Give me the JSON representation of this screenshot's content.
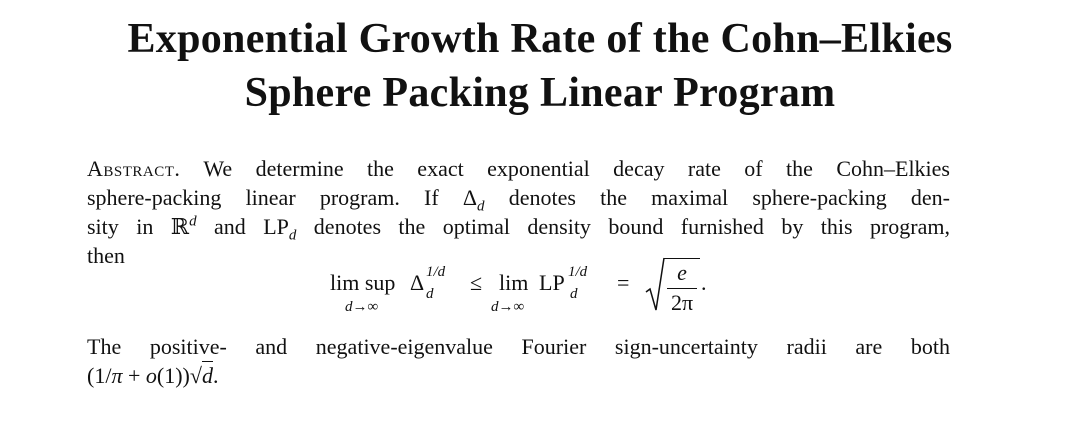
{
  "title": [
    "Exponential Growth Rate of the Cohn–Elkies",
    "Sphere Packing Linear Program"
  ],
  "abstract": {
    "label": "Abstract.",
    "lines": [
      [
        " We determine the exact exponential decay rate of the Cohn–Elkies"
      ],
      [
        "sphere-packing linear program. If ",
        {
          "base": "Δ",
          "sub": "d"
        },
        " denotes the maximal sphere-packing den-"
      ],
      [
        "sity in ",
        {
          "base": "ℝ",
          "sup": "d"
        },
        " and ",
        {
          "base": "LP",
          "sub": "d"
        },
        " denotes the optimal density bound furnished by this program,"
      ],
      [
        "then"
      ]
    ],
    "formula": {
      "limsup": "lim sup",
      "limsup_under": "d→∞",
      "delta": "Δ",
      "delta_sup": "1/d",
      "delta_sub": "d",
      "leq": "≤",
      "lim": "lim",
      "lim_under": "d→∞",
      "lp": "LP",
      "lp_sup": "1/d",
      "lp_sub": "d",
      "eq": "=",
      "numerator": "e",
      "denominator": "2π",
      "period": "."
    },
    "closing_lines": [
      [
        "The positive- and negative-eigenvalue Fourier sign-uncertainty radii are both"
      ],
      [
        "(1/",
        {
          "base": "π"
        },
        " + ",
        {
          "base": "o"
        },
        "(1))",
        {
          "sqrt": "d"
        },
        "."
      ]
    ]
  }
}
